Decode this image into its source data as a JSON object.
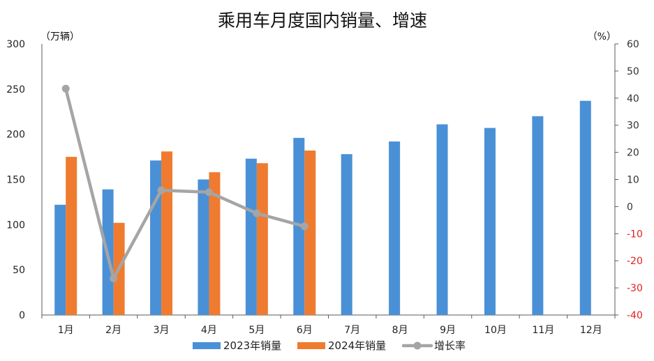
{
  "chart_data": {
    "type": "bar",
    "title": "乘用车月度国内销量、增速",
    "left_unit": "（万辆）",
    "right_unit": "（%）",
    "categories": [
      "1月",
      "2月",
      "3月",
      "4月",
      "5月",
      "6月",
      "7月",
      "8月",
      "9月",
      "10月",
      "11月",
      "12月"
    ],
    "y_left": {
      "lim": [
        0,
        300
      ],
      "ticks": [
        0,
        50,
        100,
        150,
        200,
        250,
        300
      ]
    },
    "y_right": {
      "lim": [
        -40,
        60
      ],
      "ticks": [
        -40,
        -30,
        -20,
        -10,
        0,
        10,
        20,
        30,
        40,
        50,
        60
      ],
      "tick_labels": [
        "-40",
        "-30",
        "-20",
        "-10",
        "0",
        "10",
        "20",
        "30",
        "40",
        "50",
        "60"
      ],
      "negative_color": "#e02020",
      "positive_color": "#333333"
    },
    "series": [
      {
        "name": "2023年销量",
        "kind": "bar",
        "axis": "left",
        "color": "#4a90d6",
        "values": [
          122,
          139,
          171,
          150,
          173,
          196,
          178,
          192,
          211,
          207,
          220,
          237
        ]
      },
      {
        "name": "2024年销量",
        "kind": "bar",
        "axis": "left",
        "color": "#ef7b30",
        "values": [
          175,
          102,
          181,
          158,
          168,
          182,
          null,
          null,
          null,
          null,
          null,
          null
        ]
      },
      {
        "name": "增长率",
        "kind": "line",
        "axis": "right",
        "color": "#a5a5a5",
        "values": [
          43.5,
          -26.5,
          6.0,
          5.3,
          -2.5,
          -7.3,
          null,
          null,
          null,
          null,
          null,
          null
        ]
      }
    ],
    "legend_position": "bottom",
    "grid": false
  }
}
